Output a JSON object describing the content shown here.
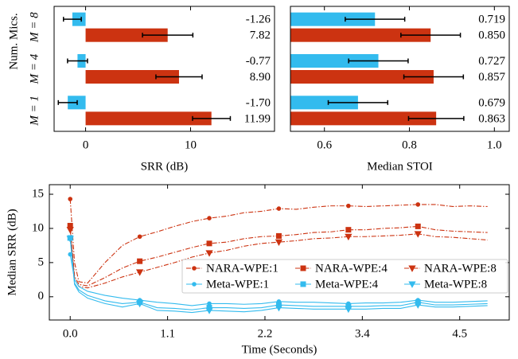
{
  "chart_data": [
    {
      "type": "hbar",
      "xlabel": "SRR (dB)",
      "ylabel": "Num. Mics.",
      "categories": [
        "M = 8",
        "M = 4",
        "M = 1"
      ],
      "xlim": [
        -3,
        18
      ],
      "xticks": [
        0,
        10
      ],
      "series": [
        {
          "color": "#33bbee",
          "values": [
            -1.26,
            -0.77,
            -1.7
          ],
          "value_labels": [
            "-1.26",
            "-0.77",
            "-1.70"
          ],
          "errors": [
            0.85,
            0.95,
            0.9
          ]
        },
        {
          "color": "#cc3311",
          "values": [
            7.82,
            8.9,
            11.99
          ],
          "value_labels": [
            "7.82",
            "8.90",
            "11.99"
          ],
          "errors": [
            2.4,
            2.2,
            1.8
          ]
        }
      ]
    },
    {
      "type": "hbar",
      "xlabel": "Median STOI",
      "xlim": [
        0.52,
        1.035
      ],
      "xticks": [
        0.6,
        0.8,
        {
          "value": 1,
          "label": "1.0"
        }
      ],
      "series": [
        {
          "color": "#33bbee",
          "values": [
            0.719,
            0.727,
            0.679
          ],
          "value_labels": [
            "0.719",
            "0.727",
            "0.679"
          ],
          "errors": [
            0.07,
            0.07,
            0.07
          ]
        },
        {
          "color": "#cc3311",
          "values": [
            0.85,
            0.857,
            0.863
          ],
          "value_labels": [
            "0.850",
            "0.857",
            "0.863"
          ],
          "errors": [
            0.07,
            0.07,
            0.065
          ]
        }
      ]
    },
    {
      "type": "line",
      "xlabel": "Time (Seconds)",
      "ylabel": "Median SRR (dB)",
      "xlim": [
        -0.24,
        5.05
      ],
      "xticks": [
        {
          "value": 0,
          "label": "0.0"
        },
        {
          "value": 1.12,
          "label": "1.1"
        },
        {
          "value": 2.24,
          "label": "2.2"
        },
        {
          "value": 3.36,
          "label": "3.4"
        },
        {
          "value": 4.48,
          "label": "4.5"
        }
      ],
      "ylim": [
        -3.4,
        16.4
      ],
      "yticks": [
        0,
        5,
        10,
        15
      ],
      "legend": "lower right",
      "x": [
        0,
        0.05,
        0.1,
        0.2,
        0.4,
        0.6,
        0.8,
        1.0,
        1.2,
        1.4,
        1.6,
        1.8,
        2.0,
        2.2,
        2.4,
        2.6,
        2.8,
        3.0,
        3.2,
        3.4,
        3.6,
        3.8,
        4.0,
        4.2,
        4.4,
        4.6,
        4.8
      ],
      "series": [
        {
          "name": "NARA-WPE:1",
          "color": "#cc3311",
          "marker": "o",
          "linestyle": "dashdot",
          "values": [
            14.3,
            5,
            2.2,
            2.0,
            5,
            7.5,
            8.8,
            9.5,
            10.3,
            11,
            11.5,
            11.8,
            12.3,
            12.5,
            12.9,
            12.8,
            13.1,
            13.3,
            13.3,
            13.2,
            13.3,
            13.4,
            13.5,
            13.5,
            13.2,
            13.3,
            13.2
          ]
        },
        {
          "name": "NARA-WPE:4",
          "color": "#cc3311",
          "marker": "s",
          "linestyle": "dashdot",
          "values": [
            10.4,
            3,
            1.8,
            1.6,
            2.8,
            4.2,
            5.2,
            5.8,
            6.5,
            7.2,
            7.8,
            8.0,
            8.5,
            8.8,
            8.9,
            9.1,
            9.4,
            9.5,
            9.8,
            9.8,
            10.0,
            10.1,
            10.3,
            9.8,
            9.6,
            9.5,
            9.4
          ]
        },
        {
          "name": "NARA-WPE:8",
          "color": "#cc3311",
          "marker": "v",
          "linestyle": "dashdot",
          "values": [
            9.8,
            2.6,
            1.5,
            1.3,
            2.0,
            2.9,
            3.6,
            4.3,
            5.0,
            5.8,
            6.4,
            6.8,
            7.4,
            7.8,
            8.0,
            8.2,
            8.5,
            8.6,
            8.8,
            8.8,
            8.9,
            9.0,
            9.2,
            8.8,
            8.7,
            8.5,
            8.3
          ]
        },
        {
          "name": "Meta-WPE:1",
          "color": "#33bbee",
          "marker": "o",
          "linestyle": "solid",
          "values": [
            6.2,
            2.5,
            1.5,
            0.8,
            0.2,
            -0.2,
            -0.5,
            -0.8,
            -1.0,
            -1.3,
            -1.0,
            -1.0,
            -1.1,
            -1.0,
            -0.7,
            -0.8,
            -0.8,
            -0.9,
            -1.0,
            -0.9,
            -0.9,
            -0.8,
            -0.5,
            -0.8,
            -0.8,
            -0.7,
            -0.6
          ]
        },
        {
          "name": "Meta-WPE:4",
          "color": "#33bbee",
          "marker": "s",
          "linestyle": "solid",
          "values": [
            8.6,
            2.0,
            1.0,
            0.2,
            -0.6,
            -1.0,
            -0.8,
            -1.6,
            -1.7,
            -1.9,
            -1.6,
            -1.6,
            -1.7,
            -1.6,
            -1.2,
            -1.3,
            -1.4,
            -1.4,
            -1.4,
            -1.4,
            -1.3,
            -1.3,
            -0.8,
            -1.2,
            -1.2,
            -1.1,
            -1.0
          ]
        },
        {
          "name": "Meta-WPE:8",
          "color": "#33bbee",
          "marker": "v",
          "linestyle": "solid",
          "values": [
            8.5,
            1.8,
            0.7,
            -0.2,
            -1.0,
            -1.5,
            -1.0,
            -2.0,
            -2.1,
            -2.3,
            -2.0,
            -2.1,
            -2.2,
            -2.0,
            -1.6,
            -1.7,
            -1.8,
            -1.8,
            -1.8,
            -1.8,
            -1.7,
            -1.7,
            -1.2,
            -1.5,
            -1.5,
            -1.4,
            -1.3
          ]
        }
      ]
    }
  ]
}
